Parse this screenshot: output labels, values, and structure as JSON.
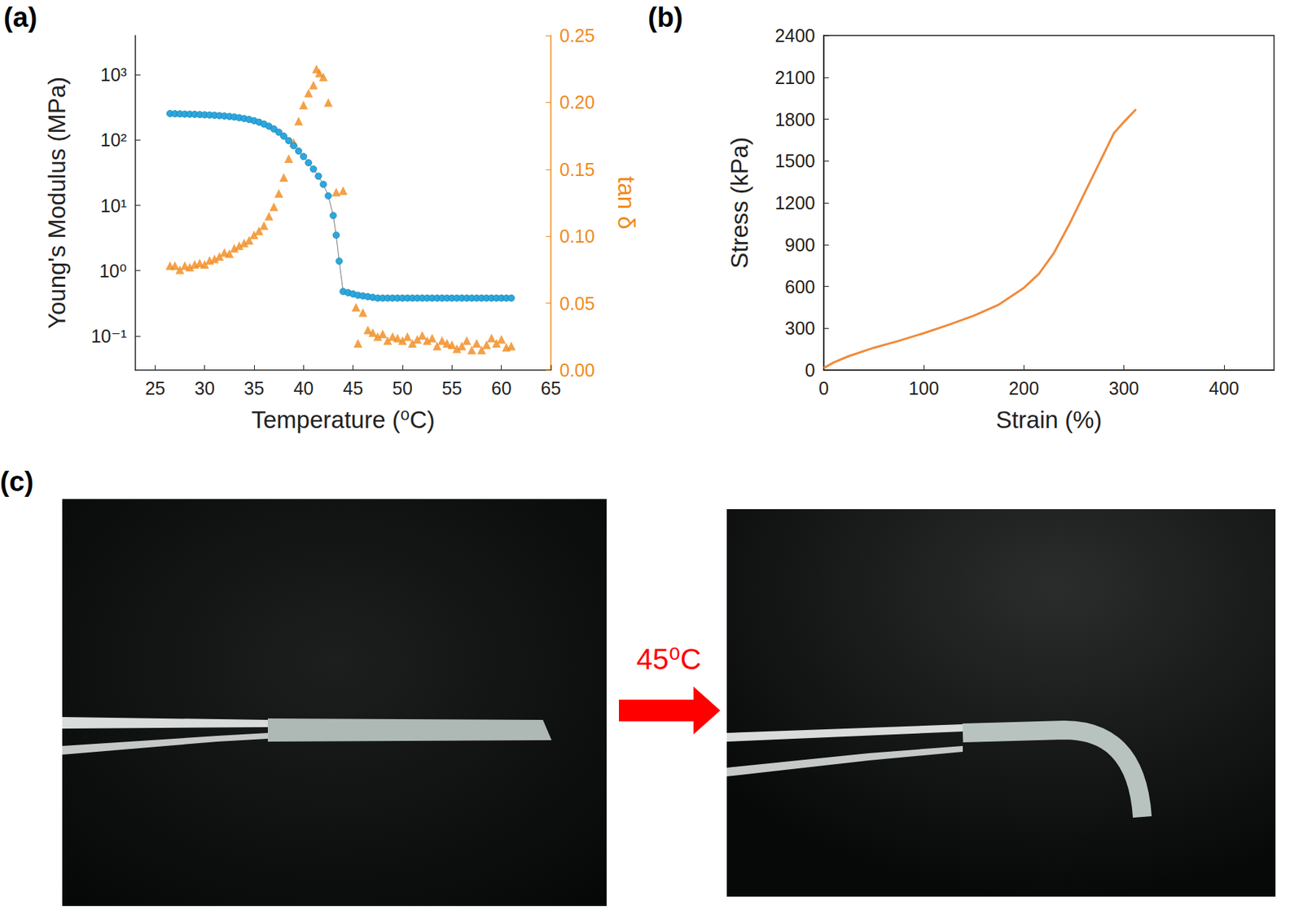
{
  "chart_data": [
    {
      "type": "line",
      "title": "(a)",
      "x_label": "Temperature (⁰C)",
      "y_label": "Young's Modulus (MPa)",
      "y2_label": "tan δ",
      "log": "y",
      "xlim": [
        23,
        65
      ],
      "xticks": [
        25,
        30,
        35,
        40,
        45,
        50,
        55,
        60,
        65
      ],
      "ylim": [
        0.03,
        4000
      ],
      "yticks": [
        {
          "value": 0.1,
          "label": "10⁻¹"
        },
        {
          "value": 1,
          "label": "10⁰"
        },
        {
          "value": 10,
          "label": "10¹"
        },
        {
          "value": 100,
          "label": "10²"
        },
        {
          "value": 1000,
          "label": "10³"
        }
      ],
      "y2lim": [
        0,
        0.25
      ],
      "y2ticks": [
        {
          "value": 0,
          "label": "0.00"
        },
        {
          "value": 0.05,
          "label": "0.05"
        },
        {
          "value": 0.1,
          "label": "0.10"
        },
        {
          "value": 0.15,
          "label": "0.15"
        },
        {
          "value": 0.2,
          "label": "0.20"
        },
        {
          "value": 0.25,
          "label": "0.25"
        }
      ],
      "grid": false,
      "series": [
        {
          "type": "line",
          "marker": "circle",
          "color": "#2aa8de",
          "x": [
            26.5,
            27,
            27.5,
            28,
            28.5,
            29,
            29.5,
            30,
            30.5,
            31,
            31.5,
            32,
            32.5,
            33,
            33.5,
            34,
            34.5,
            35,
            35.5,
            36,
            36.5,
            37,
            37.5,
            38,
            38.5,
            39,
            39.5,
            40,
            40.5,
            41,
            41.5,
            42,
            42.5,
            43,
            43.3,
            43.6,
            44,
            44.5,
            45,
            45.5,
            46,
            46.5,
            47,
            47.5,
            48,
            48.5,
            49,
            49.5,
            50,
            50.5,
            51,
            51.5,
            52,
            52.5,
            53,
            53.5,
            54,
            54.5,
            55,
            55.5,
            56,
            56.5,
            57,
            57.5,
            58,
            58.5,
            59,
            59.5,
            60,
            60.5,
            61
          ],
          "values": [
            255,
            253,
            252,
            250,
            249,
            248,
            246,
            244,
            242,
            240,
            237,
            234,
            230,
            226,
            220,
            214,
            207,
            198,
            188,
            176,
            163,
            148,
            132,
            115,
            98,
            82,
            68,
            56,
            45,
            36,
            28,
            21,
            14,
            7,
            3.5,
            1.4,
            0.48,
            0.46,
            0.44,
            0.42,
            0.41,
            0.4,
            0.39,
            0.38,
            0.38,
            0.38,
            0.38,
            0.38,
            0.38,
            0.38,
            0.38,
            0.38,
            0.38,
            0.38,
            0.38,
            0.38,
            0.38,
            0.38,
            0.38,
            0.38,
            0.38,
            0.38,
            0.38,
            0.38,
            0.38,
            0.38,
            0.38,
            0.38,
            0.38,
            0.38,
            0.38
          ]
        },
        {
          "type": "scatter",
          "marker": "triangle",
          "color": "#f08a1c",
          "axis": "y2",
          "x": [
            26.5,
            27,
            27.5,
            28,
            28.5,
            29,
            29.5,
            30,
            30.5,
            31,
            31.5,
            32,
            32.5,
            33,
            33.5,
            34,
            34.5,
            35,
            35.5,
            36,
            36.5,
            37,
            37.5,
            38,
            38.5,
            39,
            39.5,
            40,
            40.5,
            41,
            41.3,
            41.6,
            42,
            42.5,
            43.3,
            44,
            45.3,
            45.5,
            46,
            46.5,
            47,
            47.5,
            48,
            48.5,
            49,
            49.5,
            50,
            50.5,
            51,
            51.5,
            52,
            52.5,
            53,
            53.5,
            54,
            54.5,
            55,
            55.5,
            56,
            56.5,
            57,
            57.5,
            58,
            58.5,
            59,
            59.5,
            60,
            60.5,
            61
          ],
          "values": [
            0.078,
            0.078,
            0.075,
            0.078,
            0.077,
            0.079,
            0.08,
            0.079,
            0.082,
            0.083,
            0.085,
            0.088,
            0.087,
            0.091,
            0.093,
            0.095,
            0.097,
            0.101,
            0.104,
            0.108,
            0.115,
            0.122,
            0.132,
            0.144,
            0.158,
            0.17,
            0.186,
            0.198,
            0.207,
            0.213,
            0.225,
            0.222,
            0.219,
            0.2,
            0.133,
            0.134,
            0.047,
            0.02,
            0.043,
            0.03,
            0.028,
            0.025,
            0.027,
            0.022,
            0.025,
            0.024,
            0.022,
            0.025,
            0.02,
            0.023,
            0.026,
            0.022,
            0.024,
            0.018,
            0.022,
            0.02,
            0.019,
            0.016,
            0.018,
            0.022,
            0.015,
            0.02,
            0.015,
            0.019,
            0.024,
            0.02,
            0.023,
            0.017,
            0.018
          ]
        }
      ]
    },
    {
      "type": "line",
      "title": "(b)",
      "x_label": "Strain (%)",
      "y_label": "Stress (kPa)",
      "xlim": [
        0,
        450
      ],
      "xticks": [
        0,
        100,
        200,
        300,
        400
      ],
      "ylim": [
        0,
        2400
      ],
      "yticks": [
        0,
        300,
        600,
        900,
        1200,
        1500,
        1800,
        2100,
        2400
      ],
      "grid": false,
      "series": [
        {
          "type": "line",
          "color": "#f08a3c",
          "x": [
            0,
            10,
            25,
            50,
            75,
            100,
            125,
            150,
            175,
            200,
            215,
            230,
            245,
            260,
            275,
            290,
            300,
            312
          ],
          "values": [
            15,
            55,
            100,
            160,
            210,
            265,
            325,
            390,
            470,
            590,
            690,
            840,
            1040,
            1260,
            1480,
            1700,
            1780,
            1870
          ]
        }
      ]
    }
  ],
  "panel_c": {
    "label": "(c)",
    "arrow_label": "45⁰C"
  }
}
